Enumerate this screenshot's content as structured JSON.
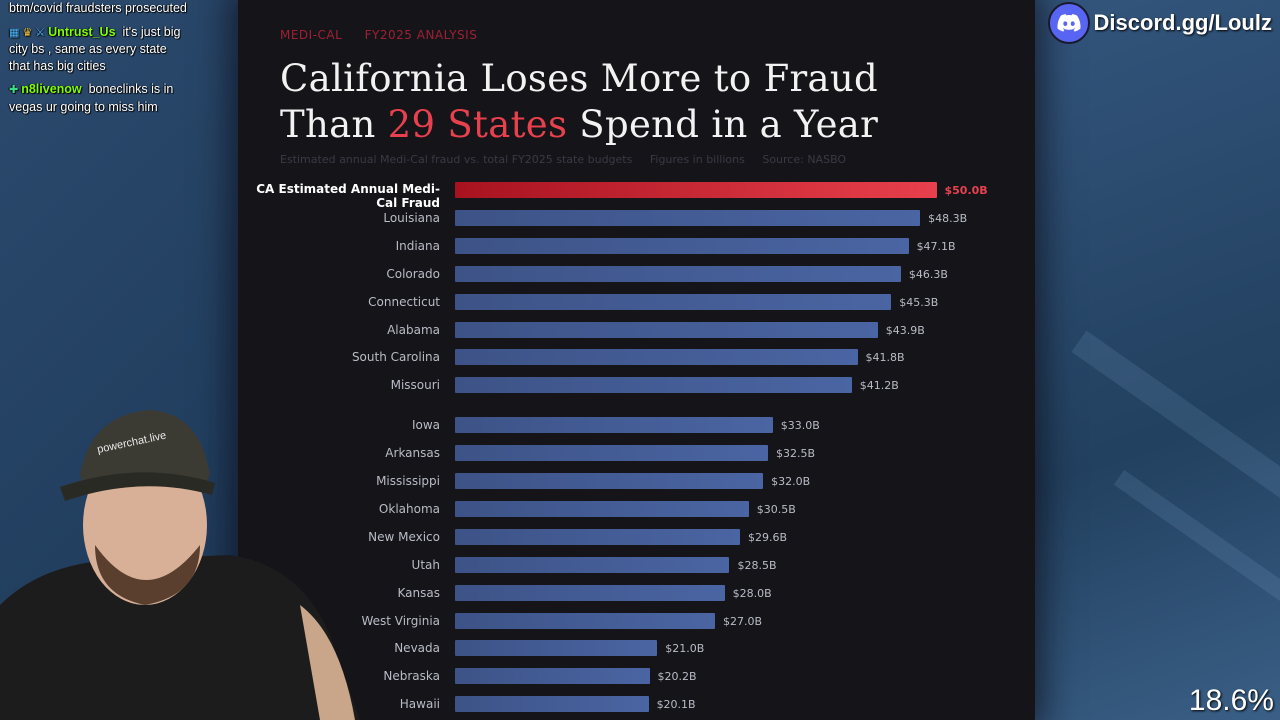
{
  "chat": {
    "messages": [
      {
        "user": "",
        "text": "btm/covid fraudsters prosecuted",
        "color": "#ffffff"
      },
      {
        "user": "Untrust_Us",
        "text": "it's just big city bs , same as every state that has big cities",
        "color": "#7fff00",
        "badges": [
          "grid-badge-icon",
          "crown-icon",
          "sword-icon"
        ]
      },
      {
        "user": "n8livenow",
        "text": "boneclinks is in vegas ur going to miss him",
        "color": "#7fff00",
        "badges": [
          "plus-badge-icon"
        ]
      }
    ]
  },
  "discord": {
    "label": "Discord.gg/Loulz"
  },
  "percent": "18.6%",
  "infographic": {
    "kicker": [
      "MEDI-CAL",
      "FY2025 ANALYSIS"
    ],
    "title_line1": "California Loses More to Fraud",
    "title_line2_pre": "Than ",
    "title_line2_accent": "29 States",
    "title_line2_post": " Spend in a Year",
    "subtitle": [
      "Estimated annual Medi-Cal fraud vs. total FY2025 state budgets",
      "Figures in billions",
      "Source: NASBO"
    ]
  },
  "chart_data": {
    "type": "bar",
    "orientation": "horizontal",
    "title": "California Loses More to Fraud Than 29 States Spend in a Year",
    "categories": [
      "CA Estimated Annual Medi-Cal Fraud",
      "Louisiana",
      "Indiana",
      "Colorado",
      "Connecticut",
      "Alabama",
      "South Carolina",
      "Missouri",
      "Iowa",
      "Arkansas",
      "Mississippi",
      "Oklahoma",
      "New Mexico",
      "Utah",
      "Kansas",
      "West Virginia",
      "Nevada",
      "Nebraska",
      "Hawaii"
    ],
    "values": [
      50.0,
      48.3,
      47.1,
      46.3,
      45.3,
      43.9,
      41.8,
      41.2,
      33.0,
      32.5,
      32.0,
      30.5,
      29.6,
      28.5,
      28.0,
      27.0,
      21.0,
      20.2,
      20.1
    ],
    "value_labels": [
      "$50.0B",
      "$48.3B",
      "$47.1B",
      "$46.3B",
      "$45.3B",
      "$43.9B",
      "$41.8B",
      "$41.2B",
      "$33.0B",
      "$32.5B",
      "$32.0B",
      "$30.5B",
      "$29.6B",
      "$28.5B",
      "$28.0B",
      "$27.0B",
      "$21.0B",
      "$20.2B",
      "$20.1B"
    ],
    "highlight_index": 0,
    "colors": {
      "highlight": "#e8414e",
      "bar": "#4a65a3"
    }
  }
}
